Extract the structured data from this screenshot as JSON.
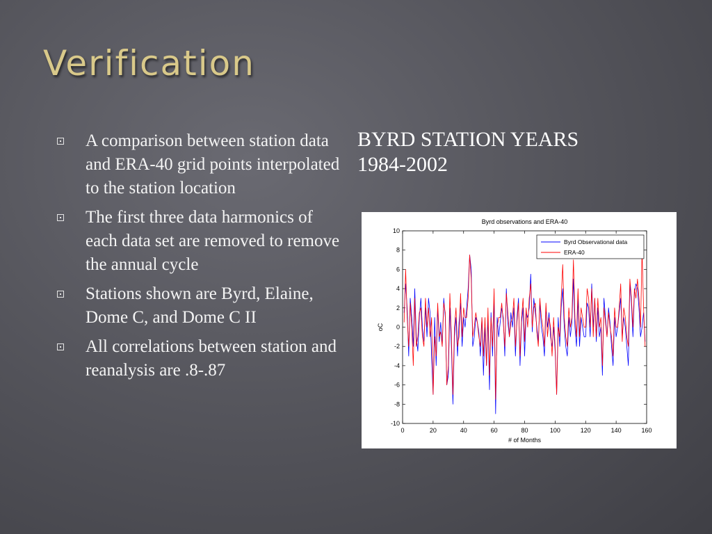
{
  "slide": {
    "title": "Verification",
    "subtitle_line1": "BYRD STATION YEARS",
    "subtitle_line2": "1984-2002",
    "bullets": [
      "A comparison between station data and ERA-40 grid points interpolated to the station location",
      "The first three data harmonics of each data set are removed to remove the annual cycle",
      "Stations shown are Byrd, Elaine, Dome C, and Dome C II",
      "All correlations between station and reanalysis are .8-.87"
    ],
    "colors": {
      "title": "#d9c98a",
      "text": "#f4f4f4"
    }
  },
  "chart_data": {
    "type": "line",
    "title": "Byrd observations and ERA-40",
    "xlabel": "# of Months",
    "ylabel": "oC",
    "xlim": [
      0,
      160
    ],
    "ylim": [
      -10,
      10
    ],
    "xticks": [
      0,
      20,
      40,
      60,
      80,
      100,
      120,
      140,
      160
    ],
    "yticks": [
      -10,
      -8,
      -6,
      -4,
      -2,
      0,
      2,
      4,
      6,
      8,
      10
    ],
    "grid": false,
    "legend_position": "top-right",
    "series": [
      {
        "name": "Byrd Observational data",
        "color": "#0000ff",
        "values": [
          1.5,
          4.5,
          2.0,
          -3.0,
          3.0,
          1.0,
          -2.0,
          4.0,
          -1.0,
          -2.5,
          1.0,
          3.0,
          0.0,
          -1.5,
          2.0,
          -1.0,
          3.0,
          1.5,
          -3.0,
          -7.0,
          1.0,
          -4.0,
          2.0,
          -1.5,
          0.5,
          -2.0,
          3.0,
          1.0,
          -6.0,
          -5.0,
          2.0,
          -2.0,
          -8.0,
          -1.0,
          1.0,
          -3.0,
          0.5,
          2.5,
          -2.0,
          1.0,
          0.0,
          2.0,
          4.0,
          7.5,
          6.0,
          -2.0,
          -1.0,
          1.0,
          0.5,
          -0.5,
          -3.0,
          1.0,
          -5.0,
          0.0,
          -4.0,
          1.0,
          -6.5,
          1.5,
          -3.0,
          3.0,
          -9.0,
          1.0,
          -1.0,
          0.5,
          2.0,
          1.0,
          -3.0,
          4.0,
          0.5,
          -1.0,
          1.5,
          0.0,
          2.0,
          -3.0,
          1.0,
          3.0,
          -4.0,
          0.5,
          2.0,
          -3.0,
          1.5,
          1.0,
          2.0,
          5.5,
          -0.5,
          3.0,
          1.5,
          0.0,
          -1.5,
          2.5,
          0.0,
          -1.0,
          -3.0,
          2.0,
          0.0,
          1.5,
          -1.0,
          -2.0,
          0.0,
          -2.5,
          -7.0,
          1.0,
          -2.0,
          2.0,
          4.0,
          0.0,
          -2.0,
          -3.0,
          1.0,
          -1.0,
          0.5,
          5.0,
          0.0,
          -2.0,
          3.0,
          -2.0,
          1.0,
          0.0,
          -1.0,
          -1.0,
          2.5,
          2.0,
          -1.0,
          4.5,
          0.0,
          3.0,
          -1.5,
          2.0,
          -1.0,
          0.0,
          -5.0,
          3.0,
          1.0,
          -1.0,
          2.0,
          0.5,
          -2.0,
          -4.0,
          1.0,
          -1.0,
          0.0,
          1.5,
          3.0,
          -1.0,
          1.0,
          0.0,
          -2.0,
          -4.0,
          4.5,
          2.5,
          -1.0,
          3.5,
          4.5,
          4.0,
          2.0,
          -1.0,
          0.0,
          1.5,
          -1.5
        ]
      },
      {
        "name": "ERA-40",
        "color": "#ff0000",
        "values": [
          0.5,
          6.0,
          1.0,
          -2.0,
          2.5,
          0.0,
          -4.0,
          3.0,
          -2.0,
          -1.0,
          1.5,
          2.0,
          -1.0,
          -2.0,
          3.0,
          0.0,
          2.0,
          -1.0,
          1.0,
          -7.0,
          -1.0,
          -3.0,
          2.5,
          -1.0,
          -0.5,
          -2.0,
          2.5,
          1.5,
          -6.0,
          -4.0,
          3.5,
          -1.0,
          -7.0,
          0.0,
          2.0,
          -2.0,
          -1.0,
          3.5,
          -1.0,
          2.0,
          1.0,
          1.0,
          3.0,
          7.5,
          5.0,
          -1.0,
          0.0,
          1.5,
          0.5,
          -1.0,
          -2.0,
          1.0,
          -3.0,
          1.0,
          -4.0,
          2.0,
          -5.0,
          1.0,
          -2.0,
          4.0,
          -7.5,
          0.0,
          1.0,
          1.0,
          2.5,
          0.5,
          -2.0,
          3.5,
          1.5,
          -1.0,
          0.5,
          1.0,
          3.0,
          -2.0,
          0.5,
          2.5,
          -3.0,
          1.0,
          3.0,
          -1.5,
          2.0,
          0.0,
          3.0,
          4.5,
          0.0,
          2.0,
          2.5,
          -0.5,
          -2.0,
          3.0,
          1.0,
          0.0,
          -2.0,
          2.5,
          -1.0,
          1.0,
          0.0,
          -3.0,
          1.0,
          -2.0,
          -7.0,
          0.0,
          -1.0,
          3.0,
          6.5,
          1.0,
          -1.0,
          -2.0,
          2.0,
          0.0,
          1.0,
          7.0,
          1.0,
          -1.0,
          4.0,
          -1.0,
          2.0,
          1.0,
          0.0,
          0.0,
          4.0,
          3.0,
          0.0,
          4.0,
          -1.0,
          3.0,
          -1.0,
          3.0,
          0.0,
          1.0,
          -4.0,
          2.0,
          0.5,
          -1.0,
          1.5,
          0.0,
          -1.0,
          -3.0,
          2.0,
          0.0,
          0.0,
          2.0,
          4.5,
          -1.5,
          2.0,
          1.0,
          -1.0,
          -2.0,
          5.0,
          3.0,
          0.0,
          4.0,
          3.0,
          5.0,
          3.0,
          0.0,
          8.0,
          2.0,
          -2.0
        ]
      }
    ]
  }
}
